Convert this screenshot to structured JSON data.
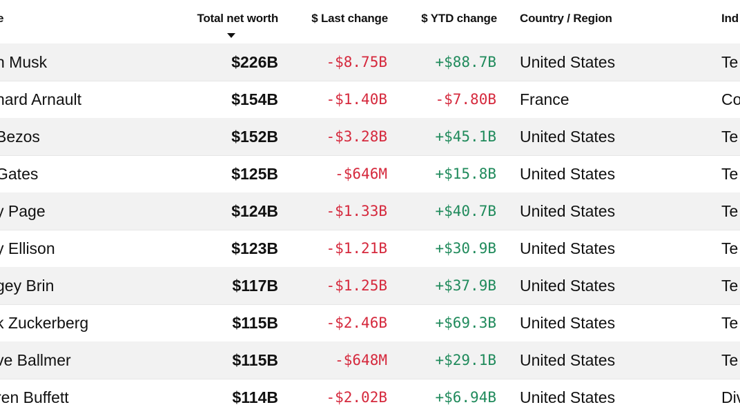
{
  "headers": {
    "name": "e",
    "net_worth": "Total net worth",
    "last_change": "$ Last change",
    "ytd_change": "$ YTD change",
    "country": "Country / Region",
    "industry": "Ind"
  },
  "sort": {
    "column": "Total net worth",
    "direction": "descending"
  },
  "colors": {
    "negative": "#d5283c",
    "positive": "#1f8a5b",
    "row_shade": "#f2f2f2"
  },
  "rows": [
    {
      "name": "n Musk",
      "net_worth": "$226B",
      "last_change": "-$8.75B",
      "ytd_change": "+$88.7B",
      "country": "United States",
      "industry": "Te"
    },
    {
      "name": "nard Arnault",
      "net_worth": "$154B",
      "last_change": "-$1.40B",
      "ytd_change": "-$7.80B",
      "country": "France",
      "industry": "Co"
    },
    {
      "name": " Bezos",
      "net_worth": "$152B",
      "last_change": "-$3.28B",
      "ytd_change": "+$45.1B",
      "country": "United States",
      "industry": "Te"
    },
    {
      "name": "Gates",
      "net_worth": "$125B",
      "last_change": "-$646M",
      "ytd_change": "+$15.8B",
      "country": "United States",
      "industry": "Te"
    },
    {
      "name": "y Page",
      "net_worth": "$124B",
      "last_change": "-$1.33B",
      "ytd_change": "+$40.7B",
      "country": "United States",
      "industry": "Te"
    },
    {
      "name": "y Ellison",
      "net_worth": "$123B",
      "last_change": "-$1.21B",
      "ytd_change": "+$30.9B",
      "country": "United States",
      "industry": "Te"
    },
    {
      "name": "gey Brin",
      "net_worth": "$117B",
      "last_change": "-$1.25B",
      "ytd_change": "+$37.9B",
      "country": "United States",
      "industry": "Te"
    },
    {
      "name": "k Zuckerberg",
      "net_worth": "$115B",
      "last_change": "-$2.46B",
      "ytd_change": "+$69.3B",
      "country": "United States",
      "industry": "Te"
    },
    {
      "name": "ve Ballmer",
      "net_worth": "$115B",
      "last_change": "-$648M",
      "ytd_change": "+$29.1B",
      "country": "United States",
      "industry": "Te"
    },
    {
      "name": "ren Buffett",
      "net_worth": "$114B",
      "last_change": "-$2.02B",
      "ytd_change": "+$6.94B",
      "country": "United States",
      "industry": "Div"
    }
  ]
}
